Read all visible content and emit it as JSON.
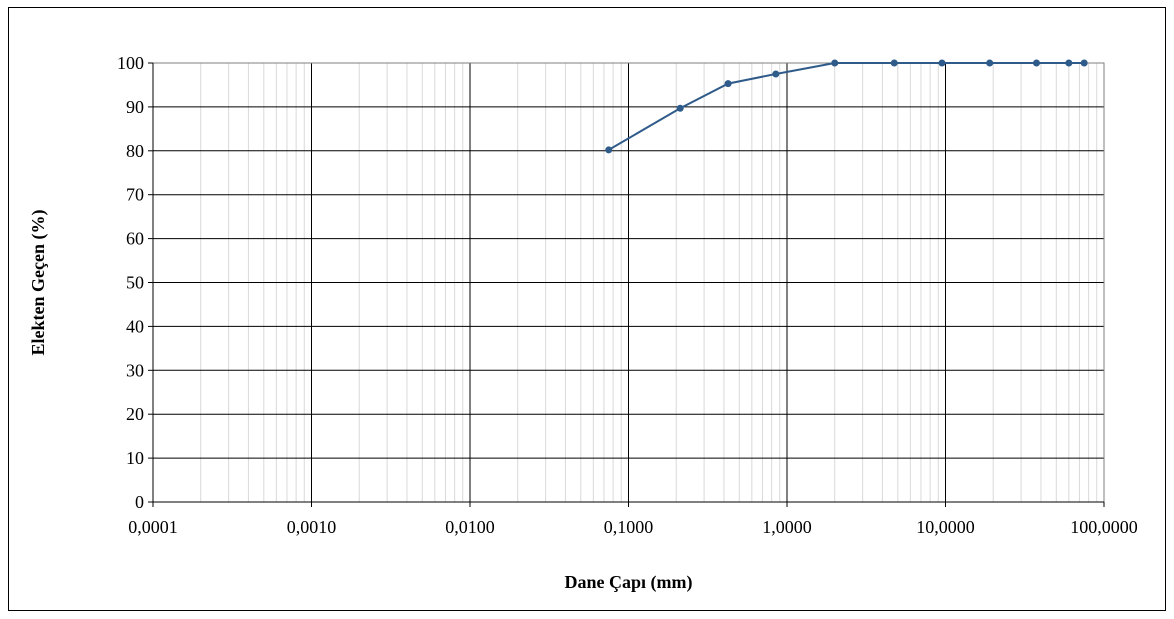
{
  "chart_data": {
    "type": "line",
    "title": "",
    "xlabel": "Dane Çapı (mm)",
    "ylabel": "Elekten Geçen (%)",
    "x_scale": "log",
    "xlim": [
      0.0001,
      100
    ],
    "ylim": [
      0,
      100
    ],
    "grid": true,
    "x_ticks": [
      0.0001,
      0.001,
      0.01,
      0.1,
      1,
      10,
      100
    ],
    "x_tick_labels": [
      "0,0001",
      "0,0010",
      "0,0100",
      "0,1000",
      "1,0000",
      "10,0000",
      "100,0000"
    ],
    "y_ticks": [
      0,
      10,
      20,
      30,
      40,
      50,
      60,
      70,
      80,
      90,
      100
    ],
    "y_tick_labels": [
      "0",
      "10",
      "20",
      "30",
      "40",
      "50",
      "60",
      "70",
      "80",
      "90",
      "100"
    ],
    "series": [
      {
        "color": "#2f5b8a",
        "x": [
          0.075,
          0.212,
          0.425,
          0.85,
          2.0,
          4.75,
          9.5,
          19.0,
          37.5,
          60.0,
          75.0
        ],
        "y": [
          80.2,
          89.7,
          95.3,
          97.5,
          100,
          100,
          100,
          100,
          100,
          100,
          100
        ]
      }
    ]
  }
}
